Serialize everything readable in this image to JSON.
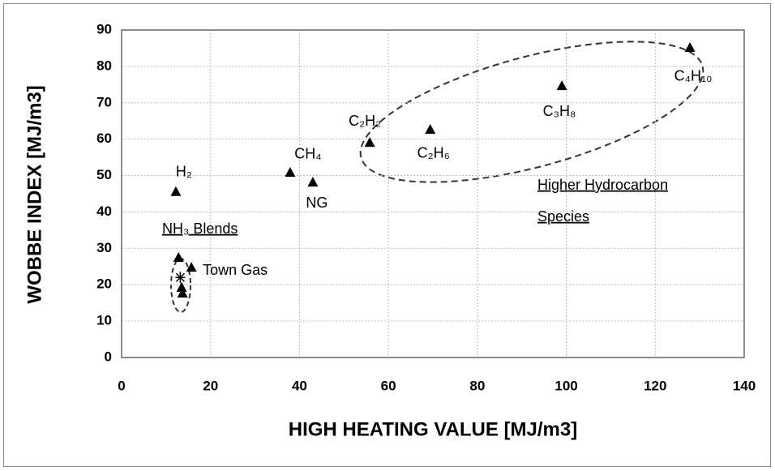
{
  "chart_data": {
    "type": "scatter",
    "xlabel": "HIGH HEATING VALUE [MJ/m3]",
    "ylabel": "WOBBE INDEX [MJ/m3]",
    "xlim": [
      0,
      140
    ],
    "xticks": [
      0,
      20,
      40,
      60,
      80,
      100,
      120,
      140
    ],
    "ylim": [
      0,
      90
    ],
    "yticks": [
      0,
      10,
      20,
      30,
      40,
      50,
      60,
      70,
      80,
      90
    ],
    "grid": true,
    "series": [
      {
        "color": "#000000",
        "marker": "triangle",
        "x": [
          12.2,
          12.8,
          13.5,
          13.7,
          15.7,
          37.9,
          43.0,
          55.8,
          69.4,
          99.0,
          127.8
        ],
        "values": [
          45.5,
          27.4,
          19.2,
          17.6,
          24.7,
          50.8,
          48.1,
          59.0,
          62.6,
          74.6,
          85.1
        ],
        "point_labels": [
          "H₂",
          null,
          null,
          null,
          "Town Gas",
          "CH₄",
          "NG",
          "C₂H₂",
          "C₂H₆",
          "C₃H₈",
          "C₄H₁₀"
        ]
      },
      {
        "color": "#000000",
        "marker": "star",
        "x": [
          13.2
        ],
        "values": [
          22.0
        ]
      }
    ],
    "annotations": [
      "NH₃ Blends",
      "Higher Hydrocarbon",
      "Species"
    ]
  }
}
